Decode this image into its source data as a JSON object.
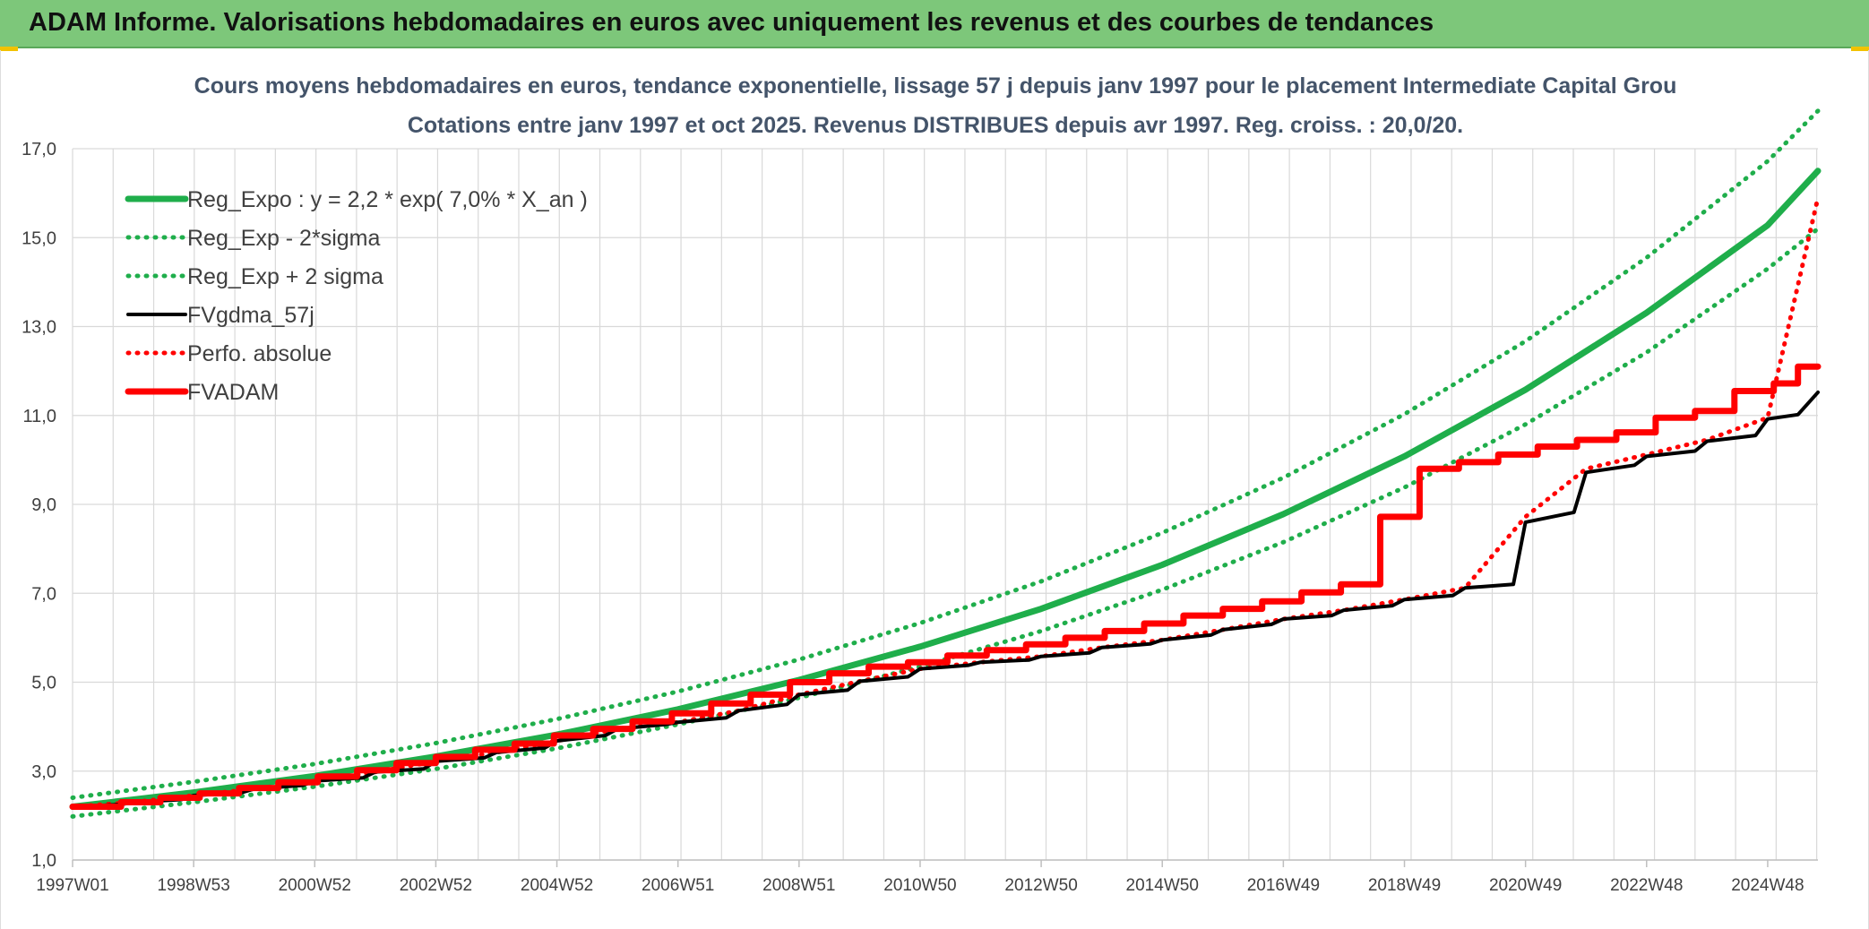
{
  "banner": {
    "title": "ADAM Informe. Valorisations hebdomadaires en euros avec uniquement les revenus et des courbes de tendances"
  },
  "colors": {
    "banner": "#7dc77a",
    "green": "#1fae4b",
    "red": "#ff0000",
    "black": "#000000",
    "grid": "#d9d9d9"
  },
  "chart_data": {
    "type": "line",
    "title": "Cours moyens hebdomadaires en euros, tendance exponentielle, lissage 57 j depuis janv 1997 pour le placement Intermediate Capital Grou",
    "subtitle": "Cotations entre janv 1997 et oct 2025. Revenus DISTRIBUES depuis avr 1997. Reg. croiss. : 20,0/20.",
    "xlabel": "",
    "ylabel": "",
    "x_range": [
      1997.0,
      2025.83
    ],
    "ylim": [
      1.0,
      17.0
    ],
    "yticks": [
      "1,0",
      "3,0",
      "5,0",
      "7,0",
      "9,0",
      "11,0",
      "13,0",
      "15,0",
      "17,0"
    ],
    "ytick_values": [
      1,
      3,
      5,
      7,
      9,
      11,
      13,
      15,
      17
    ],
    "xticks": [
      "1997W01",
      "1998W53",
      "2000W52",
      "2002W52",
      "2004W52",
      "2006W51",
      "2008W51",
      "2010W50",
      "2012W50",
      "2014W50",
      "2016W49",
      "2018W49",
      "2020W49",
      "2022W48",
      "2024W48"
    ],
    "xtick_values": [
      1997.0,
      1999.0,
      2001.0,
      2003.0,
      2005.0,
      2007.0,
      2009.0,
      2011.0,
      2013.0,
      2015.0,
      2017.0,
      2019.0,
      2021.0,
      2023.0,
      2025.0
    ],
    "grid": true,
    "legend_position": "top-left",
    "legend": [
      {
        "label": "Reg_Expo : y = 2,2 * exp( 7,0% *  X_an )",
        "color": "#1fae4b",
        "style": "solid-thick"
      },
      {
        "label": "Reg_Exp - 2*sigma",
        "color": "#1fae4b",
        "style": "dotted"
      },
      {
        "label": "Reg_Exp + 2 sigma",
        "color": "#1fae4b",
        "style": "dotted"
      },
      {
        "label": "FVgdma_57j",
        "color": "#000000",
        "style": "solid"
      },
      {
        "label": "Perfo. absolue",
        "color": "#ff0000",
        "style": "dotted"
      },
      {
        "label": "FVADAM",
        "color": "#ff0000",
        "style": "solid-thick"
      }
    ],
    "series": [
      {
        "name": "Reg_Expo : y = 2,2 * exp( 7,0% *  X_an )",
        "x": [
          1997,
          1999,
          2001,
          2003,
          2005,
          2007,
          2009,
          2011,
          2013,
          2015,
          2017,
          2019,
          2021,
          2023,
          2025,
          2025.83
        ],
        "y": [
          2.2,
          2.52,
          2.89,
          3.33,
          3.82,
          4.39,
          5.05,
          5.8,
          6.65,
          7.64,
          8.78,
          10.08,
          11.58,
          13.31,
          15.28,
          16.5
        ]
      },
      {
        "name": "Reg_Exp - 2*sigma",
        "x": [
          1997,
          1999,
          2001,
          2003,
          2005,
          2007,
          2009,
          2011,
          2013,
          2015,
          2017,
          2019,
          2021,
          2023,
          2025,
          2025.83
        ],
        "y": [
          1.98,
          2.3,
          2.65,
          3.05,
          3.51,
          4.05,
          4.65,
          5.35,
          6.15,
          7.08,
          8.15,
          9.38,
          10.8,
          12.42,
          14.3,
          15.2
        ]
      },
      {
        "name": "Reg_Exp + 2 sigma",
        "x": [
          1997,
          1999,
          2001,
          2003,
          2005,
          2007,
          2009,
          2011,
          2013,
          2015,
          2017,
          2019,
          2021,
          2023,
          2025,
          2025.83
        ],
        "y": [
          2.4,
          2.76,
          3.16,
          3.63,
          4.17,
          4.79,
          5.51,
          6.33,
          7.27,
          8.36,
          9.6,
          11.03,
          12.67,
          14.55,
          16.72,
          17.85
        ]
      },
      {
        "name": "FVgdma_57j",
        "x": [
          1997.0,
          1997.8,
          1998.0,
          1998.8,
          1999.0,
          1999.8,
          2000.0,
          2000.8,
          2001.0,
          2001.8,
          2002.0,
          2002.8,
          2003.0,
          2003.8,
          2004.0,
          2004.8,
          2005.0,
          2005.8,
          2006.0,
          2006.8,
          2007.0,
          2007.8,
          2008.0,
          2008.8,
          2009.0,
          2009.8,
          2010.0,
          2010.8,
          2011.0,
          2011.8,
          2012.0,
          2012.8,
          2013.0,
          2013.8,
          2014.0,
          2014.8,
          2015.0,
          2015.8,
          2016.0,
          2016.8,
          2017.0,
          2017.8,
          2018.0,
          2018.8,
          2019.0,
          2019.8,
          2020.0,
          2020.8,
          2021.0,
          2021.8,
          2022.0,
          2022.8,
          2023.0,
          2023.8,
          2024.0,
          2024.8,
          2025.0,
          2025.5,
          2025.83
        ],
        "y": [
          2.2,
          2.25,
          2.3,
          2.36,
          2.45,
          2.52,
          2.6,
          2.68,
          2.78,
          2.85,
          2.98,
          3.05,
          3.22,
          3.3,
          3.42,
          3.52,
          3.68,
          3.8,
          3.95,
          4.05,
          4.1,
          4.2,
          4.36,
          4.5,
          4.72,
          4.82,
          5.02,
          5.12,
          5.3,
          5.38,
          5.45,
          5.5,
          5.58,
          5.66,
          5.78,
          5.86,
          5.95,
          6.06,
          6.18,
          6.3,
          6.42,
          6.5,
          6.62,
          6.72,
          6.86,
          6.95,
          7.12,
          7.2,
          8.6,
          8.82,
          9.72,
          9.88,
          10.08,
          10.2,
          10.42,
          10.55,
          10.92,
          11.02,
          11.52
        ]
      },
      {
        "name": "Perfo. absolue",
        "x": [
          1997.0,
          1998.0,
          1999.0,
          2000.0,
          2001.0,
          2002.0,
          2003.0,
          2004.0,
          2005.0,
          2006.0,
          2007.0,
          2008.0,
          2009.0,
          2010.0,
          2011.0,
          2012.0,
          2013.0,
          2014.0,
          2015.0,
          2016.0,
          2017.0,
          2018.0,
          2019.0,
          2020.0,
          2021.0,
          2022.0,
          2023.0,
          2024.0,
          2025.0,
          2025.83
        ],
        "y": [
          2.2,
          2.3,
          2.45,
          2.6,
          2.78,
          2.98,
          3.22,
          3.42,
          3.68,
          3.95,
          4.1,
          4.36,
          4.72,
          5.02,
          5.3,
          5.45,
          5.58,
          5.78,
          5.95,
          6.18,
          6.42,
          6.62,
          6.86,
          7.12,
          8.72,
          9.8,
          10.12,
          10.45,
          10.95,
          15.9
        ]
      },
      {
        "name": "FVADAM",
        "x": [
          1997.0,
          1997.8,
          1997.8,
          1998.45,
          1998.45,
          1999.1,
          1999.1,
          1999.75,
          1999.75,
          2000.4,
          2000.4,
          2001.05,
          2001.05,
          2001.7,
          2001.7,
          2002.35,
          2002.35,
          2003.0,
          2003.0,
          2003.65,
          2003.65,
          2004.3,
          2004.3,
          2004.95,
          2004.95,
          2005.6,
          2005.6,
          2006.25,
          2006.25,
          2006.9,
          2006.9,
          2007.55,
          2007.55,
          2008.2,
          2008.2,
          2008.85,
          2008.85,
          2009.5,
          2009.5,
          2010.15,
          2010.15,
          2010.8,
          2010.8,
          2011.45,
          2011.45,
          2012.1,
          2012.1,
          2012.75,
          2012.75,
          2013.4,
          2013.4,
          2014.05,
          2014.05,
          2014.7,
          2014.7,
          2015.35,
          2015.35,
          2016.0,
          2016.0,
          2016.65,
          2016.65,
          2017.3,
          2017.3,
          2017.95,
          2017.95,
          2018.6,
          2018.6,
          2019.25,
          2019.25,
          2019.9,
          2019.9,
          2020.55,
          2020.55,
          2021.2,
          2021.2,
          2021.85,
          2021.85,
          2022.5,
          2022.5,
          2023.15,
          2023.15,
          2023.8,
          2023.8,
          2024.45,
          2024.45,
          2025.1,
          2025.1,
          2025.5,
          2025.5,
          2025.83
        ],
        "y": [
          2.2,
          2.2,
          2.3,
          2.3,
          2.4,
          2.4,
          2.5,
          2.5,
          2.62,
          2.62,
          2.75,
          2.75,
          2.88,
          2.88,
          3.02,
          3.02,
          3.18,
          3.18,
          3.32,
          3.32,
          3.48,
          3.48,
          3.62,
          3.62,
          3.8,
          3.8,
          3.95,
          3.95,
          4.12,
          4.12,
          4.3,
          4.3,
          4.52,
          4.52,
          4.72,
          4.72,
          5.0,
          5.0,
          5.2,
          5.2,
          5.35,
          5.35,
          5.45,
          5.45,
          5.6,
          5.6,
          5.72,
          5.72,
          5.85,
          5.85,
          6.0,
          6.0,
          6.15,
          6.15,
          6.32,
          6.32,
          6.5,
          6.5,
          6.65,
          6.65,
          6.82,
          6.82,
          7.02,
          7.02,
          7.2,
          7.2,
          8.72,
          8.72,
          9.8,
          9.8,
          9.95,
          9.95,
          10.12,
          10.12,
          10.3,
          10.3,
          10.45,
          10.45,
          10.62,
          10.62,
          10.95,
          10.95,
          11.1,
          11.1,
          11.55,
          11.55,
          11.72,
          11.72,
          12.1,
          12.1
        ]
      }
    ]
  }
}
